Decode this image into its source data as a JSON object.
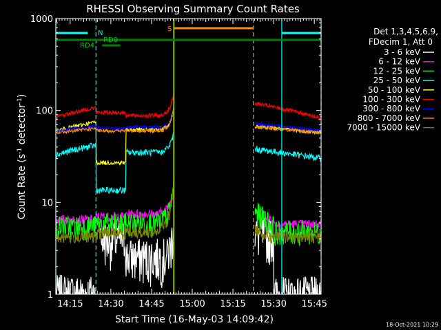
{
  "chart_data": {
    "type": "line",
    "title": "RHESSI Observing Summary Count Rates",
    "xlabel": "Start Time (16-May-03 14:09:42)",
    "ylabel_main": "Count Rate (s",
    "ylabel_sup1": "-1",
    "ylabel_mid": " detector",
    "ylabel_sup2": "-1",
    "ylabel_end": ")",
    "y_scale": "log",
    "ylim": [
      1,
      1000
    ],
    "xlim": [
      "14:09:42",
      "15:47:30"
    ],
    "x_tick_labels": [
      "14:15",
      "14:30",
      "14:45",
      "15:00",
      "15:15",
      "15:30",
      "15:45"
    ],
    "y_tick_labels": [
      "1",
      "10",
      "100",
      "1000"
    ],
    "timestamp": "18-Oct-2021 10:29",
    "legend_header": [
      "Det 1,3,4,5,6,9,",
      "FDecim 1, Att 0"
    ],
    "series": [
      {
        "name": "3 - 6 keV",
        "color": "#ffffff"
      },
      {
        "name": "6 - 12 keV",
        "color": "#ff00ff"
      },
      {
        "name": "12 - 25 keV",
        "color": "#00ff00"
      },
      {
        "name": "25 - 50 keV",
        "color": "#00ffff"
      },
      {
        "name": "50 - 100 keV",
        "color": "#ffff00"
      },
      {
        "name": "100 - 300 keV",
        "color": "#ff0000"
      },
      {
        "name": "300 - 800 keV",
        "color": "#0000ff"
      },
      {
        "name": "800 - 7000 keV",
        "color": "#ff8c00"
      },
      {
        "name": "7000 - 15000 keV",
        "color": "#808000"
      }
    ],
    "flag_labels": {
      "n": "N",
      "rd0": "RD0",
      "rd4": "RD4",
      "s": "S"
    }
  }
}
